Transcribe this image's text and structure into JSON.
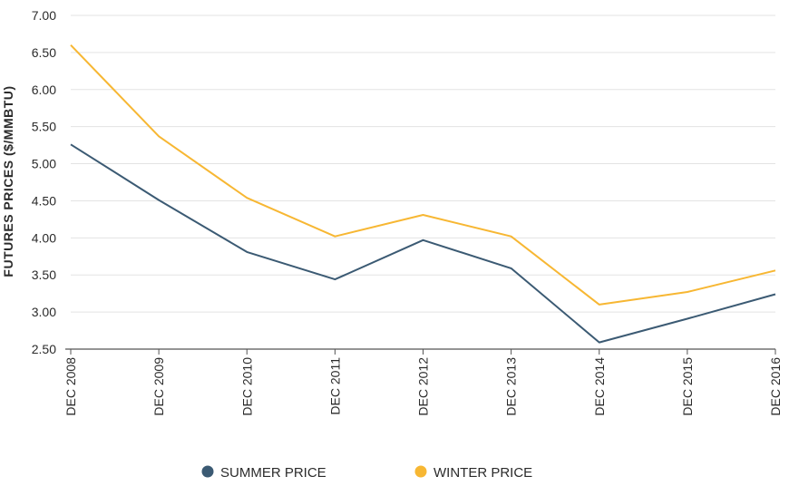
{
  "chart_data": {
    "type": "line",
    "title": "",
    "xlabel": "",
    "ylabel": "FUTURES PRICES ($/MMBTU)",
    "categories": [
      "DEC 2008",
      "DEC 2009",
      "DEC 2010",
      "DEC 2011",
      "DEC 2012",
      "DEC 2013",
      "DEC 2014",
      "DEC 2015",
      "DEC 2016"
    ],
    "y_ticks": [
      "2.50",
      "3.00",
      "3.50",
      "4.00",
      "4.50",
      "5.00",
      "5.50",
      "6.00",
      "6.50",
      "7.00"
    ],
    "ylim": [
      2.5,
      7.0
    ],
    "grid": true,
    "legend_position": "bottom",
    "series": [
      {
        "name": "SUMMER PRICE",
        "color": "#3b5a73",
        "values": [
          5.26,
          4.51,
          3.81,
          3.44,
          3.97,
          3.59,
          2.59,
          2.91,
          3.24
        ]
      },
      {
        "name": "WINTER PRICE",
        "color": "#f7b733",
        "values": [
          6.6,
          5.37,
          4.54,
          4.02,
          4.31,
          4.02,
          3.1,
          3.27,
          3.56
        ]
      }
    ]
  }
}
